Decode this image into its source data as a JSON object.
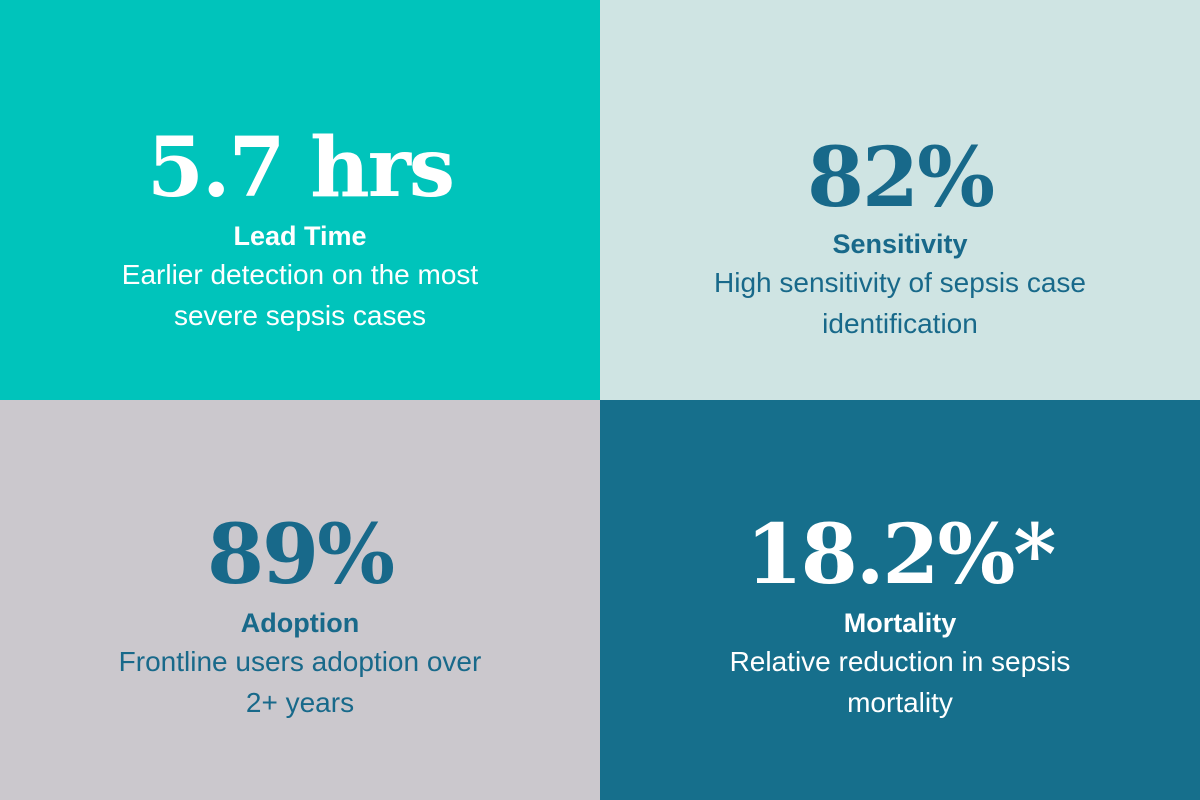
{
  "tiles": [
    {
      "value": "5.7 hrs",
      "label": "Lead Time",
      "description": "Earlier detection on the most severe sepsis cases",
      "background": "#00c4bb",
      "text_color": "#ffffff"
    },
    {
      "value": "82%",
      "label": "Sensitivity",
      "description": "High sensitivity of sepsis case identification",
      "background": "#cfe4e3",
      "text_color": "#18698a"
    },
    {
      "value": "89%",
      "label": "Adoption",
      "description": "Frontline users adoption over 2+ years",
      "background": "#cbc8cd",
      "text_color": "#18698a"
    },
    {
      "value": "18.2%*",
      "label": "Mortality",
      "description": "Relative reduction in sepsis mortality",
      "background": "#166f8c",
      "text_color": "#ffffff"
    }
  ]
}
